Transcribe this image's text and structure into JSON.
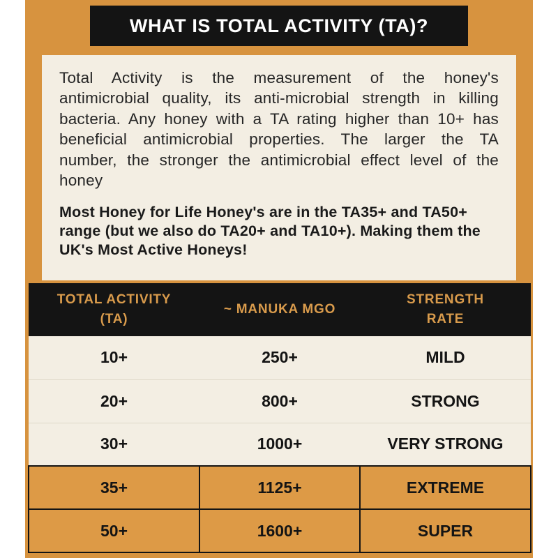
{
  "page": {
    "title": "WHAT IS TOTAL ACTIVITY (TA)?",
    "intro": "Total Activity is the measurement of the honey's antimicrobial quality, its anti-microbial strength in killing bacteria. Any honey with a TA rating higher than 10+ has beneficial antimicrobial properties. The larger the TA number, the stronger the antimicrobial effect level of the honey",
    "highlight": "Most Honey for Life Honey's are in the TA35+ and TA50+ range (but we also do TA20+ and TA10+). Making them the UK's Most Active Honeys!"
  },
  "colors": {
    "background_orange": "#D7933F",
    "panel_cream": "#F3EEE3",
    "bar_black": "#141414",
    "header_text_orange": "#D99B4C",
    "highlight_row_orange": "#DD9A46",
    "title_text": "#FFFFFF"
  },
  "table": {
    "headers": [
      "TOTAL ACTIVITY\n(TA)",
      "~ MANUKA MGO",
      "STRENGTH\nRATE"
    ],
    "rows": [
      {
        "ta": "10+",
        "mgo": "250+",
        "strength": "MILD",
        "highlight": false
      },
      {
        "ta": "20+",
        "mgo": "800+",
        "strength": "STRONG",
        "highlight": false
      },
      {
        "ta": "30+",
        "mgo": "1000+",
        "strength": "VERY STRONG",
        "highlight": false
      },
      {
        "ta": "35+",
        "mgo": "1125+",
        "strength": "EXTREME",
        "highlight": true
      },
      {
        "ta": "50+",
        "mgo": "1600+",
        "strength": "SUPER",
        "highlight": true
      }
    ]
  }
}
